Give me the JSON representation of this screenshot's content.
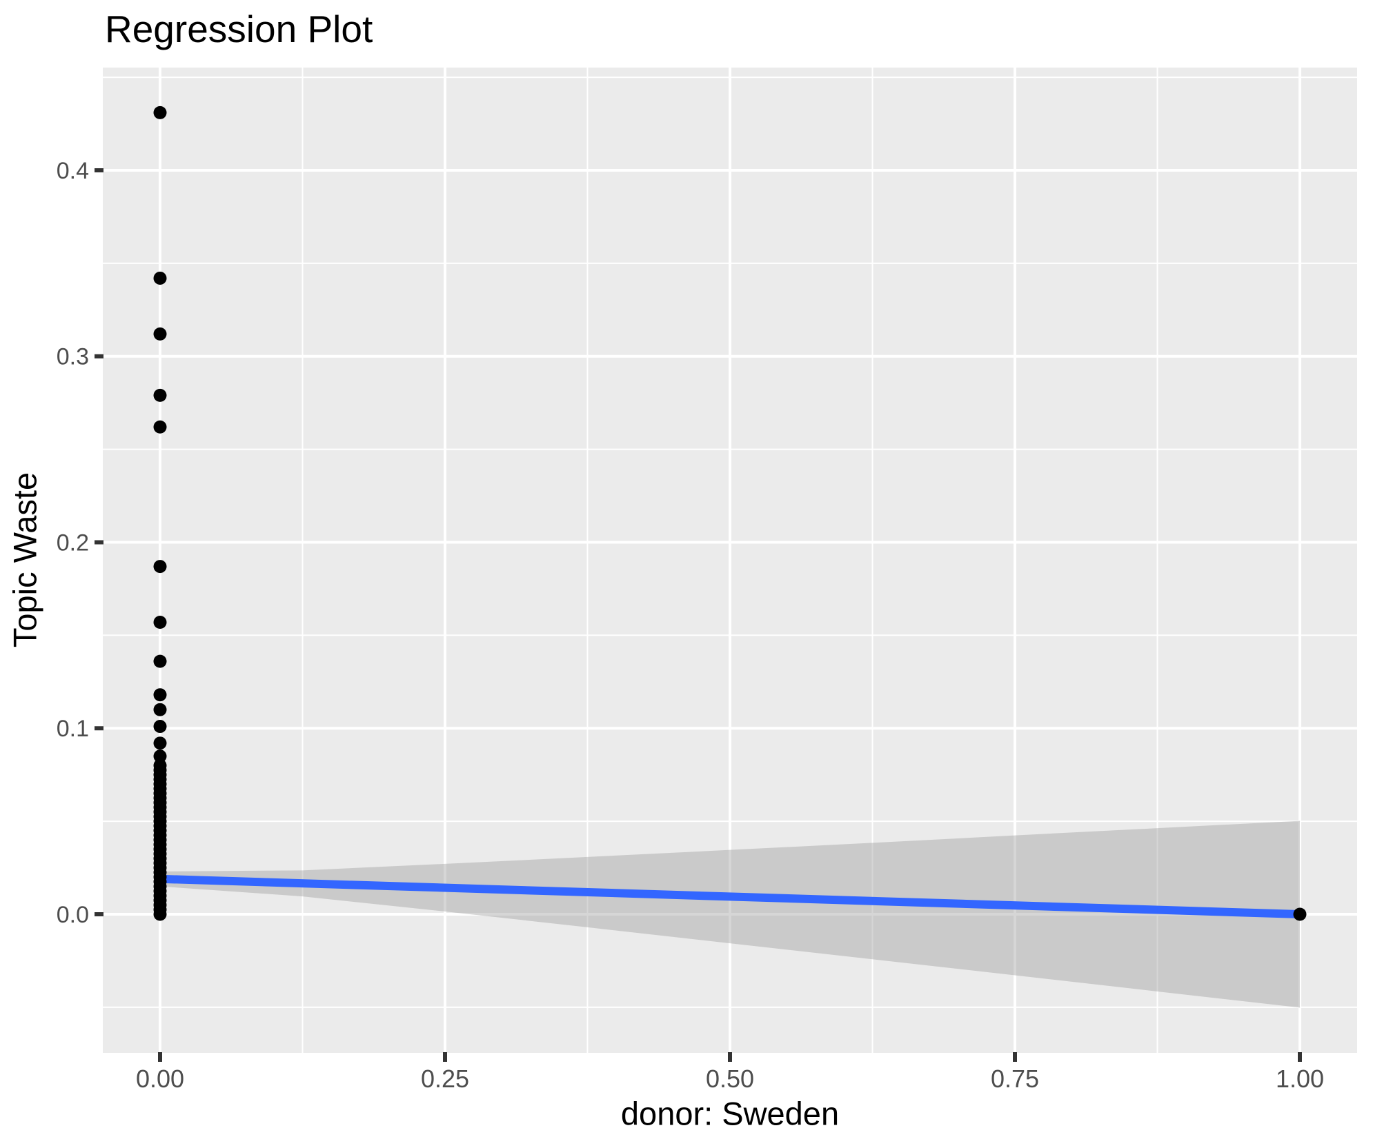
{
  "chart_data": {
    "type": "scatter",
    "title": "Regression Plot",
    "xlabel": "donor: Sweden",
    "ylabel": "Topic Waste",
    "xlim": [
      -0.0503,
      1.0503
    ],
    "ylim": [
      -0.0745,
      0.4553
    ],
    "grid": "on",
    "legend": "none",
    "x_ticks": {
      "values": [
        0,
        0.25,
        0.5,
        0.75,
        1
      ],
      "labels": [
        "0.00",
        "0.25",
        "0.50",
        "0.75",
        "1.00"
      ]
    },
    "y_ticks": {
      "values": [
        0,
        0.1,
        0.2,
        0.3,
        0.4
      ],
      "labels": [
        "0.0",
        "0.1",
        "0.2",
        "0.3",
        "0.4"
      ]
    },
    "x_minor_gridlines": [
      0.125,
      0.375,
      0.625,
      0.875
    ],
    "y_minor_gridlines": [
      -0.05,
      0.05,
      0.15,
      0.25,
      0.35,
      0.45
    ],
    "series": [
      {
        "name": "observations",
        "type": "scatter",
        "color": "#000000",
        "points": [
          {
            "x": 0,
            "y": [
              0.431,
              0.342,
              0.312,
              0.279,
              0.262,
              0.187,
              0.157,
              0.136,
              0.118,
              0.11,
              0.101,
              0.092,
              0.085,
              0.08,
              0.0775,
              0.075,
              0.0725,
              0.07,
              0.0675,
              0.065,
              0.0625,
              0.06,
              0.0575,
              0.055,
              0.0525,
              0.05,
              0.0475,
              0.045,
              0.0425,
              0.04,
              0.0375,
              0.035,
              0.0325,
              0.03,
              0.0275,
              0.025,
              0.0225,
              0.02,
              0.0175,
              0.015,
              0.0125,
              0.01,
              0.0075,
              0.005,
              0.0025,
              0.0
            ]
          },
          {
            "x": 1,
            "y": [
              0.0
            ]
          }
        ]
      },
      {
        "name": "linear-fit",
        "type": "line",
        "color": "#3366FF",
        "x": [
          0,
          1
        ],
        "y": [
          0.019,
          0.0
        ]
      },
      {
        "name": "confidence-band",
        "type": "area",
        "color": "rgba(153,153,153,0.4)",
        "x": [
          0,
          0.125,
          0.25,
          0.375,
          0.5,
          0.625,
          0.75,
          0.875,
          1
        ],
        "upper": [
          0.023,
          0.0236,
          0.0271,
          0.0308,
          0.0346,
          0.0384,
          0.0424,
          0.0463,
          0.0502
        ],
        "lower": [
          0.015,
          0.0096,
          0.0015,
          -0.007,
          -0.0156,
          -0.0242,
          -0.0328,
          -0.0415,
          -0.0502
        ]
      }
    ],
    "colors": {
      "panel_bg": "#EBEBEB",
      "gridline": "#FFFFFF",
      "axis_text": "#4D4D4D",
      "tick_mark": "#333333",
      "title_text": "#000000",
      "axis_title_text": "#000000",
      "point": "#000000",
      "fit_line": "#3366FF"
    }
  }
}
